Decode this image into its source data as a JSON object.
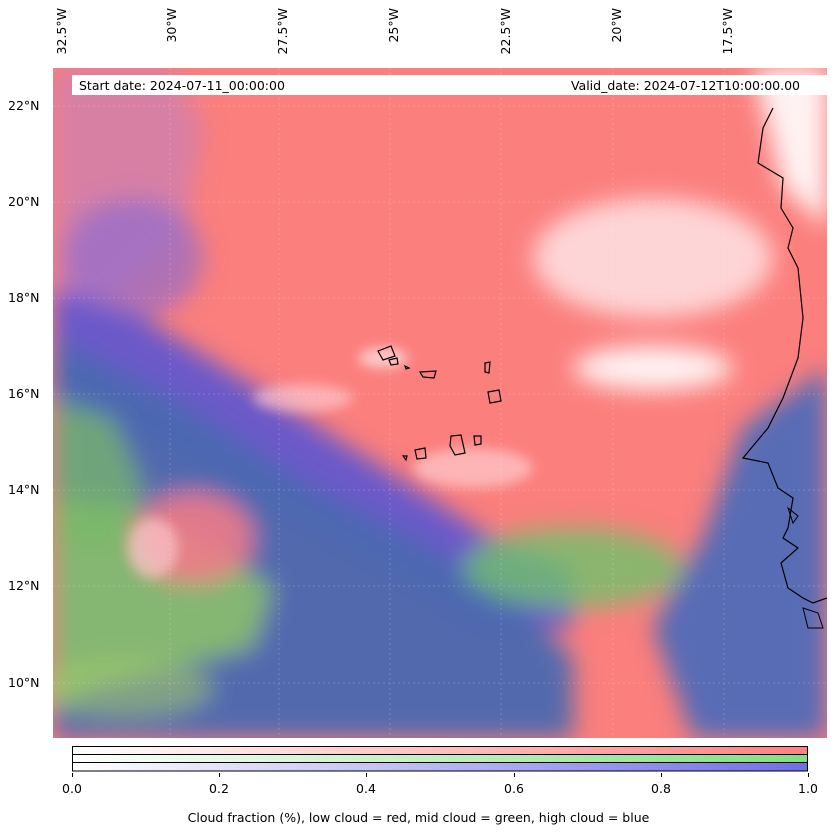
{
  "map": {
    "lon_labels": [
      "32.5°W",
      "30°W",
      "27.5°W",
      "25°W",
      "22.5°W",
      "20°W",
      "17.5°W"
    ],
    "lat_labels": [
      "22°N",
      "20°N",
      "18°N",
      "16°N",
      "14°N",
      "12°N",
      "10°N"
    ],
    "start_date": "Start date: 2024-07-11_00:00:00",
    "valid_date": "Valid_date: 2024-07-12T10:00:00.00",
    "colors": {
      "low_cloud": "#ff7f7f",
      "mid_cloud": "#7fe07f",
      "high_cloud": "#6f6fe8",
      "ocean_blue": "#4a68b0",
      "coast": "#000000"
    }
  },
  "colorbar": {
    "ticks": [
      "0.0",
      "0.2",
      "0.4",
      "0.6",
      "0.8",
      "1.0"
    ],
    "label": "Cloud fraction (%), low cloud = red, mid cloud = green, high cloud = blue"
  }
}
